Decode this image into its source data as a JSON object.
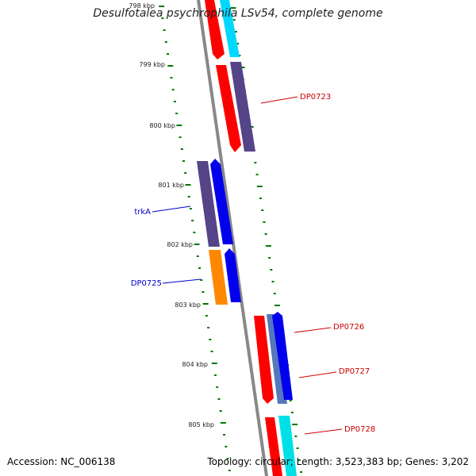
{
  "title": "Desulfotalea psychrophila LSv54, complete genome",
  "accession": "Accession: NC_006138",
  "summary": "Topology: circular; Length: 3,523,383 bp; Genes: 3,202",
  "ticks": [
    "798 kbp",
    "799 kbp",
    "800 kbp",
    "801 kbp",
    "802 kbp",
    "803 kbp",
    "804 kbp",
    "805 kbp"
  ],
  "genes": [
    {
      "label": "DP0723",
      "color": "#cc0000"
    },
    {
      "label": "trkA",
      "color": "#0000cc"
    },
    {
      "label": "DP0725",
      "color": "#0000cc"
    },
    {
      "label": "DP0726",
      "color": "#cc0000"
    },
    {
      "label": "DP0727",
      "color": "#cc0000"
    },
    {
      "label": "DP0728",
      "color": "#cc0000"
    }
  ],
  "colors": {
    "backbone": "#888888",
    "ticks": "#007700",
    "red": "#ff0000",
    "cyan": "#00d8ff",
    "purple": "#554488",
    "blue": "#0000ee",
    "orange": "#ff8800",
    "steel": "#5577bb"
  }
}
